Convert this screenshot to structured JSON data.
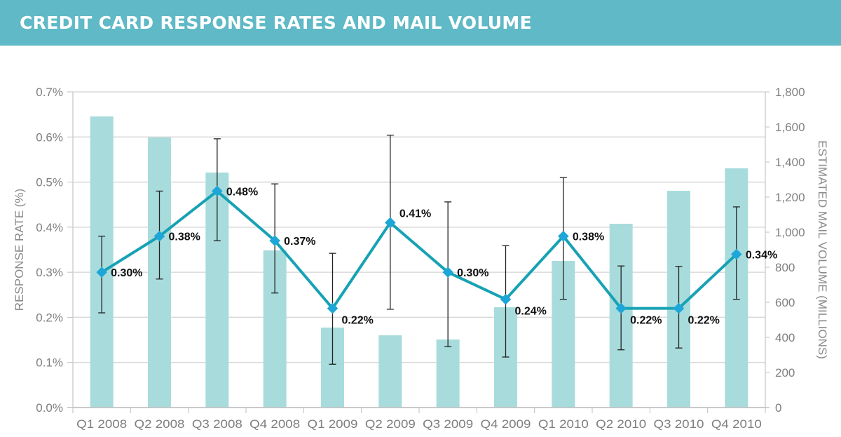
{
  "header": {
    "title": "CREDIT CARD RESPONSE RATES AND MAIL VOLUME"
  },
  "chart_data": {
    "type": "bar+line",
    "title": "CREDIT CARD RESPONSE RATES AND MAIL VOLUME",
    "categories": [
      "Q1 2008",
      "Q2 2008",
      "Q3 2008",
      "Q4 2008",
      "Q1 2009",
      "Q2 2009",
      "Q3 2009",
      "Q4 2009",
      "Q1 2010",
      "Q2 2010",
      "Q3 2010",
      "Q4 2010"
    ],
    "ylabel": "RESPONSE RATE (%)",
    "y2label": "ESTIMATED MAIL VOLUME (MILLIONS)",
    "ylim": [
      0,
      0.7
    ],
    "y2lim": [
      0,
      1800
    ],
    "yticks": [
      "0.0%",
      "0.1%",
      "0.2%",
      "0.3%",
      "0.4%",
      "0.5%",
      "0.6%",
      "0.7%"
    ],
    "y2ticks": [
      "0",
      "200",
      "400",
      "600",
      "800",
      "1,000",
      "1,200",
      "1,400",
      "1,600",
      "1,800"
    ],
    "grid": true,
    "series": [
      {
        "name": "Estimated Mail Volume",
        "type": "bar",
        "axis": "right",
        "color": "#a8dcdc",
        "values": [
          1660,
          1540,
          1340,
          896,
          456,
          412,
          388,
          572,
          836,
          1048,
          1236,
          1364
        ]
      },
      {
        "name": "Response Rate",
        "type": "line",
        "axis": "left",
        "color": "#16a2b4",
        "marker_color": "#1fa6d8",
        "values": [
          0.3,
          0.38,
          0.48,
          0.37,
          0.22,
          0.41,
          0.3,
          0.24,
          0.38,
          0.22,
          0.22,
          0.34
        ],
        "labels": [
          "0.30%",
          "0.38%",
          "0.48%",
          "0.37%",
          "0.22%",
          "0.41%",
          "0.30%",
          "0.24%",
          "0.38%",
          "0.22%",
          "0.22%",
          "0.34%"
        ],
        "error_low": [
          0.21,
          0.285,
          0.37,
          0.254,
          0.096,
          0.218,
          0.135,
          0.112,
          0.24,
          0.128,
          0.132,
          0.24
        ],
        "error_high": [
          0.38,
          0.48,
          0.596,
          0.496,
          0.342,
          0.604,
          0.456,
          0.359,
          0.51,
          0.314,
          0.313,
          0.445
        ]
      }
    ]
  }
}
